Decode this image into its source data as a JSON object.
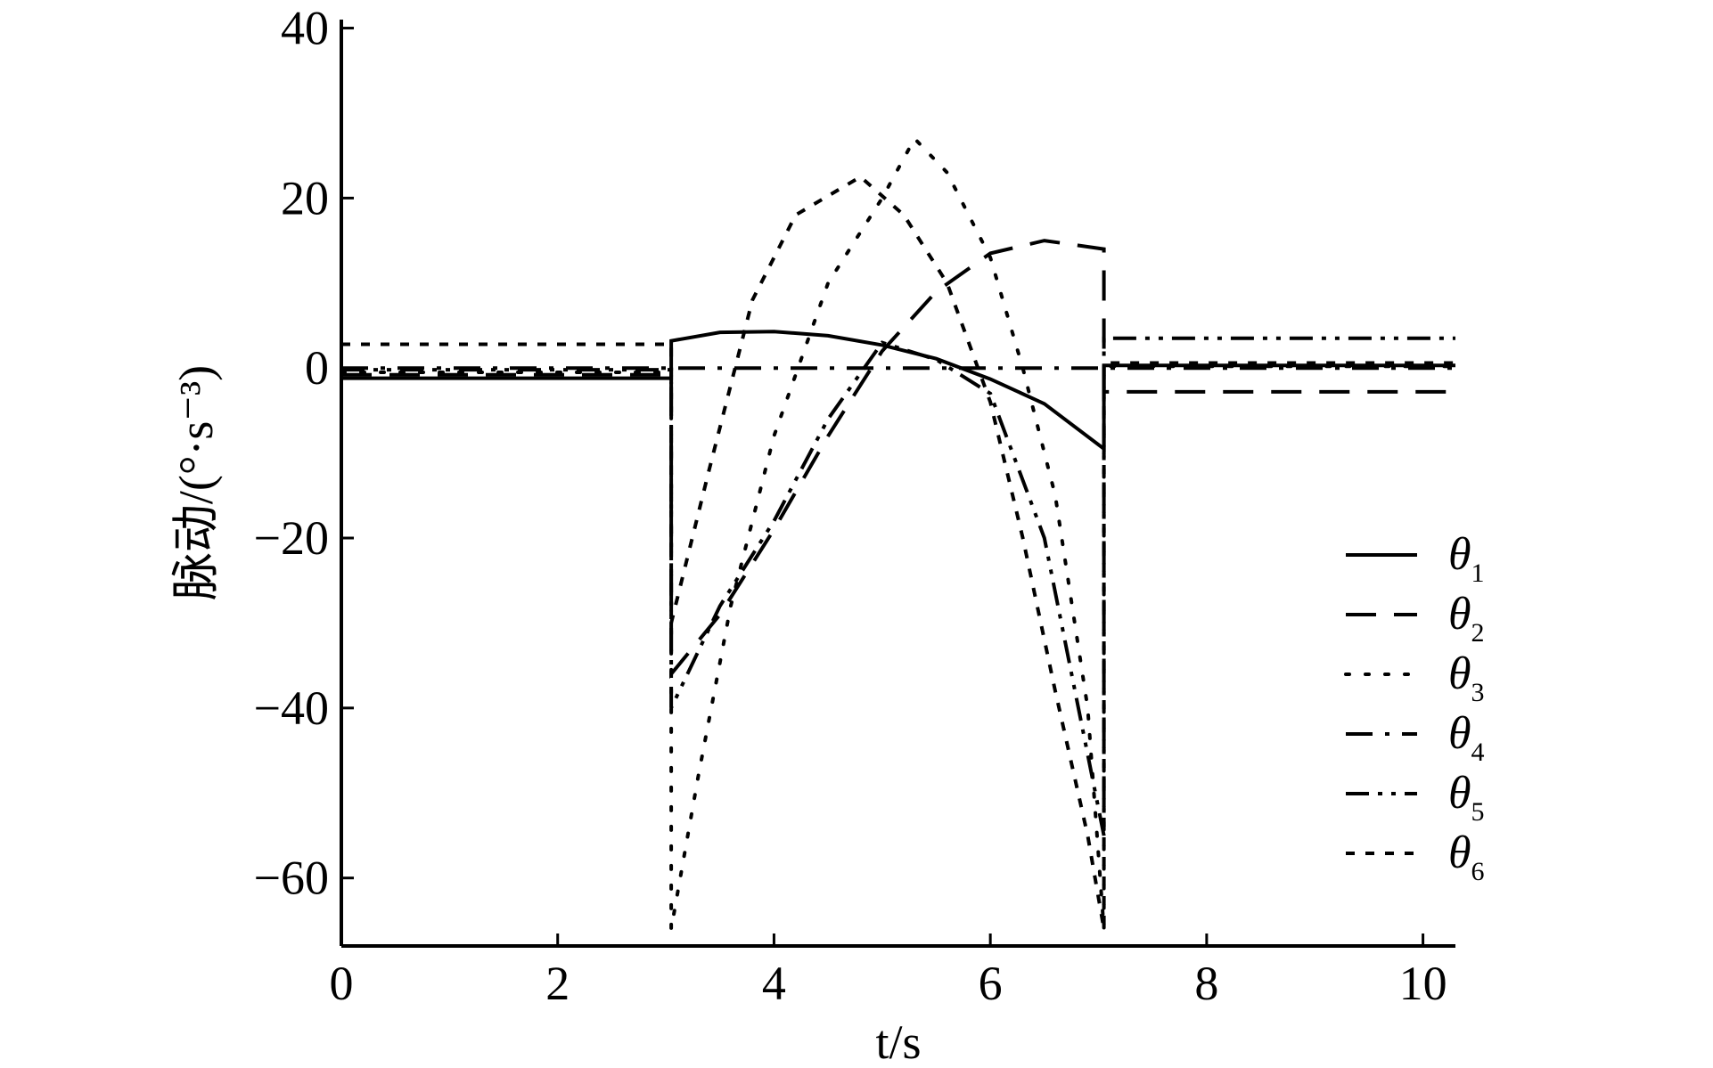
{
  "chart_data": {
    "type": "line",
    "xlabel": "t/s",
    "ylabel": "脉动/(°·s⁻³)",
    "xlim": [
      0,
      10.3
    ],
    "ylim": [
      -68,
      41
    ],
    "xticks": [
      0,
      2,
      4,
      6,
      8,
      10
    ],
    "yticks": [
      40,
      20,
      0,
      -20,
      -40,
      -60
    ],
    "xtick_labels": [
      "0",
      "2",
      "4",
      "6",
      "8",
      "10"
    ],
    "ytick_labels": [
      "40",
      "20",
      "0",
      "−20",
      "−40",
      "−60"
    ],
    "grid": false,
    "legend_position": "lower-right",
    "series": [
      {
        "name": "θ1",
        "symbol": "θ",
        "subscript": "1",
        "style": "solid",
        "points": [
          [
            0,
            -1.2
          ],
          [
            3.05,
            -1.2
          ],
          [
            3.05,
            3.2
          ],
          [
            3.5,
            4.2
          ],
          [
            4,
            4.3
          ],
          [
            4.5,
            3.8
          ],
          [
            5,
            2.7
          ],
          [
            5.5,
            1.1
          ],
          [
            6,
            -1.3
          ],
          [
            6.5,
            -4.2
          ],
          [
            7.05,
            -9.5
          ],
          [
            7.05,
            0.3
          ],
          [
            10.3,
            0.3
          ]
        ]
      },
      {
        "name": "θ2",
        "symbol": "θ",
        "subscript": "2",
        "style": "dashed",
        "points": [
          [
            0,
            -0.8
          ],
          [
            3.05,
            -0.8
          ],
          [
            3.05,
            -36
          ],
          [
            3.5,
            -29
          ],
          [
            4,
            -19
          ],
          [
            4.5,
            -8
          ],
          [
            5,
            2
          ],
          [
            5.5,
            9
          ],
          [
            6,
            13.5
          ],
          [
            6.5,
            15
          ],
          [
            7.05,
            14
          ],
          [
            7.05,
            -2.8
          ],
          [
            10.3,
            -2.8
          ]
        ]
      },
      {
        "name": "θ3",
        "symbol": "θ",
        "subscript": "3",
        "style": "dotted",
        "points": [
          [
            0,
            -0.5
          ],
          [
            3.05,
            -0.5
          ],
          [
            3.05,
            -66
          ],
          [
            3.3,
            -48
          ],
          [
            3.6,
            -28
          ],
          [
            4,
            -8
          ],
          [
            4.5,
            10
          ],
          [
            5,
            20
          ],
          [
            5.3,
            27
          ],
          [
            5.6,
            23
          ],
          [
            6,
            13
          ],
          [
            6.3,
            0
          ],
          [
            6.6,
            -15
          ],
          [
            6.9,
            -40
          ],
          [
            7.05,
            -66
          ],
          [
            7.05,
            0.2
          ],
          [
            10.3,
            0.2
          ]
        ]
      },
      {
        "name": "θ4",
        "symbol": "θ",
        "subscript": "4",
        "style": "dashdot",
        "points": [
          [
            0,
            0
          ],
          [
            3.05,
            0
          ],
          [
            3.05,
            0
          ],
          [
            7.05,
            0
          ],
          [
            7.05,
            0
          ],
          [
            10.3,
            0
          ]
        ]
      },
      {
        "name": "θ5",
        "symbol": "θ",
        "subscript": "5",
        "style": "dashdotdot",
        "points": [
          [
            0,
            -0.2
          ],
          [
            3.05,
            -0.2
          ],
          [
            3.05,
            -40
          ],
          [
            3.5,
            -28
          ],
          [
            4,
            -18
          ],
          [
            4.5,
            -6
          ],
          [
            5,
            3
          ],
          [
            5.5,
            1
          ],
          [
            6,
            -3
          ],
          [
            6.5,
            -20
          ],
          [
            7.05,
            -55
          ],
          [
            7.05,
            3.5
          ],
          [
            10.3,
            3.5
          ]
        ]
      },
      {
        "name": "θ6",
        "symbol": "θ",
        "subscript": "6",
        "style": "shortdash",
        "points": [
          [
            0,
            2.8
          ],
          [
            3.05,
            2.8
          ],
          [
            3.05,
            -30
          ],
          [
            3.4,
            -12
          ],
          [
            3.8,
            8
          ],
          [
            4.2,
            18
          ],
          [
            4.8,
            22.5
          ],
          [
            5.2,
            18
          ],
          [
            5.6,
            10
          ],
          [
            6,
            -4
          ],
          [
            6.3,
            -20
          ],
          [
            6.6,
            -38
          ],
          [
            6.9,
            -55
          ],
          [
            7.05,
            -66
          ],
          [
            7.05,
            0.6
          ],
          [
            10.3,
            0.6
          ]
        ]
      }
    ]
  }
}
